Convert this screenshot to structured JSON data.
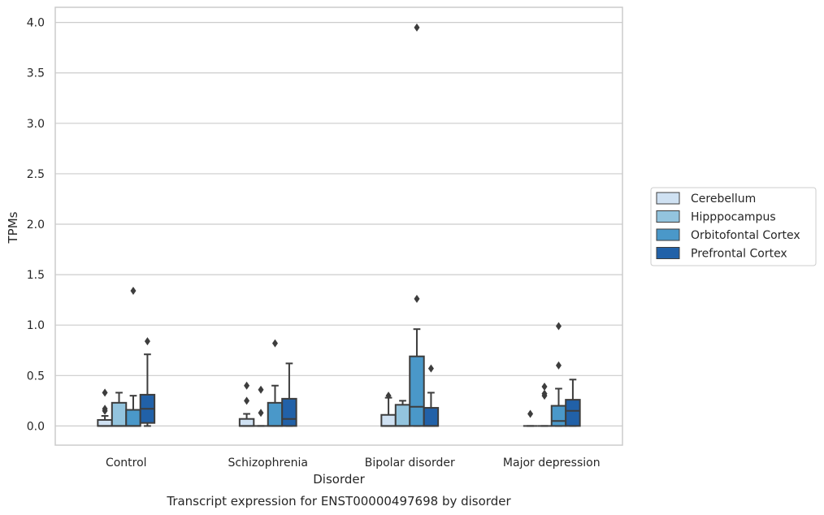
{
  "chart_data": {
    "type": "box",
    "caption": "Transcript expression for ENST00000497698 by disorder",
    "xlabel": "Disorder",
    "ylabel": "TPMs",
    "ylim": [
      -0.19,
      4.15
    ],
    "yticks": [
      "0.0",
      "0.5",
      "1.0",
      "1.5",
      "2.0",
      "2.5",
      "3.0",
      "3.5",
      "4.0"
    ],
    "ytick_values": [
      0,
      0.5,
      1.0,
      1.5,
      2.0,
      2.5,
      3.0,
      3.5,
      4.0
    ],
    "grid": "horizontal",
    "legend_position": "right",
    "categories": [
      "Control",
      "Schizophrenia",
      "Bipolar disorder",
      "Major depression"
    ],
    "series": [
      {
        "name": "Cerebellum",
        "color": "#cfe1f2",
        "boxes": [
          {
            "whisker_low": 0,
            "q1": 0,
            "median": 0,
            "q3": 0.06,
            "whisker_high": 0.1,
            "outliers": [
              0.15,
              0.17,
              0.33
            ]
          },
          {
            "whisker_low": 0,
            "q1": 0,
            "median": 0,
            "q3": 0.07,
            "whisker_high": 0.12,
            "outliers": [
              0.25,
              0.4
            ]
          },
          {
            "whisker_low": 0,
            "q1": 0,
            "median": 0,
            "q3": 0.11,
            "whisker_high": 0.28,
            "outliers": [
              0.3
            ]
          },
          {
            "whisker_low": 0,
            "q1": 0,
            "median": 0,
            "q3": 0,
            "whisker_high": 0,
            "outliers": [
              0.12
            ]
          }
        ]
      },
      {
        "name": "Hipppocampus",
        "color": "#93c4de",
        "boxes": [
          {
            "whisker_low": 0,
            "q1": 0,
            "median": 0,
            "q3": 0.23,
            "whisker_high": 0.33,
            "outliers": []
          },
          {
            "whisker_low": 0,
            "q1": 0,
            "median": 0,
            "q3": 0,
            "whisker_high": 0,
            "outliers": [
              0.13,
              0.36
            ]
          },
          {
            "whisker_low": 0,
            "q1": 0,
            "median": 0,
            "q3": 0.21,
            "whisker_high": 0.25,
            "outliers": []
          },
          {
            "whisker_low": 0,
            "q1": 0,
            "median": 0,
            "q3": 0,
            "whisker_high": 0,
            "outliers": [
              0.3,
              0.32,
              0.39
            ]
          }
        ]
      },
      {
        "name": "Orbitofontal Cortex",
        "color": "#4a98c9",
        "boxes": [
          {
            "whisker_low": 0,
            "q1": 0,
            "median": 0,
            "q3": 0.16,
            "whisker_high": 0.3,
            "outliers": [
              1.34
            ]
          },
          {
            "whisker_low": 0,
            "q1": 0,
            "median": 0,
            "q3": 0.23,
            "whisker_high": 0.4,
            "outliers": [
              0.82
            ]
          },
          {
            "whisker_low": 0,
            "q1": 0,
            "median": 0.19,
            "q3": 0.69,
            "whisker_high": 0.96,
            "outliers": [
              1.26,
              3.95
            ]
          },
          {
            "whisker_low": 0,
            "q1": 0,
            "median": 0.05,
            "q3": 0.2,
            "whisker_high": 0.37,
            "outliers": [
              0.6,
              0.99
            ]
          }
        ]
      },
      {
        "name": "Prefrontal Cortex",
        "color": "#2161a8",
        "boxes": [
          {
            "whisker_low": 0,
            "q1": 0.03,
            "median": 0.17,
            "q3": 0.31,
            "whisker_high": 0.71,
            "outliers": [
              0.84
            ]
          },
          {
            "whisker_low": 0,
            "q1": 0,
            "median": 0.07,
            "q3": 0.27,
            "whisker_high": 0.62,
            "outliers": []
          },
          {
            "whisker_low": 0,
            "q1": 0,
            "median": 0,
            "q3": 0.18,
            "whisker_high": 0.33,
            "outliers": [
              0.57
            ]
          },
          {
            "whisker_low": 0,
            "q1": 0,
            "median": 0.15,
            "q3": 0.26,
            "whisker_high": 0.46,
            "outliers": []
          }
        ]
      }
    ]
  }
}
